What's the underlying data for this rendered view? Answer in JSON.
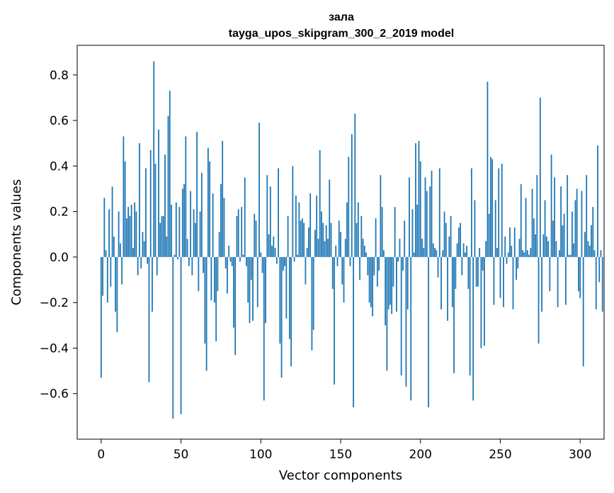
{
  "chart_data": {
    "type": "bar",
    "title": "зала",
    "subtitle": "tayga_upos_skipgram_300_2_2019 model",
    "xlabel": "Vector components",
    "ylabel": "Components values",
    "xlim": [
      -15,
      315
    ],
    "ylim": [
      -0.8,
      0.93
    ],
    "xticks": [
      0,
      50,
      100,
      150,
      200,
      250,
      300
    ],
    "yticks": [
      -0.6,
      -0.4,
      -0.2,
      0.0,
      0.2,
      0.4,
      0.6,
      0.8
    ],
    "xtick_labels": [
      "0",
      "50",
      "100",
      "150",
      "200",
      "250",
      "300"
    ],
    "ytick_labels": [
      "−0.6",
      "−0.4",
      "−0.2",
      "0.0",
      "0.2",
      "0.4",
      "0.6",
      "0.8"
    ],
    "bar_color": "#1f77b4",
    "grid": false,
    "values": [
      -0.53,
      -0.17,
      0.26,
      0.03,
      -0.2,
      0.21,
      -0.13,
      0.31,
      0.09,
      -0.24,
      -0.33,
      0.2,
      0.06,
      -0.12,
      0.53,
      0.42,
      0.17,
      0.22,
      0.18,
      0.23,
      0.04,
      0.24,
      0.2,
      -0.08,
      0.5,
      -0.05,
      0.11,
      0.07,
      0.39,
      -0.03,
      -0.55,
      0.47,
      -0.24,
      0.86,
      0.41,
      -0.08,
      0.56,
      0.15,
      0.18,
      0.18,
      0.45,
      0.09,
      0.62,
      0.73,
      0.23,
      -0.71,
      0.01,
      0.24,
      -0.01,
      0.22,
      -0.69,
      0.3,
      0.32,
      0.53,
      0.08,
      -0.04,
      0.29,
      -0.08,
      0.21,
      0.15,
      0.55,
      -0.15,
      0.2,
      0.37,
      -0.07,
      -0.38,
      -0.5,
      0.48,
      0.42,
      -0.19,
      0.28,
      -0.2,
      -0.37,
      -0.15,
      0.11,
      0.32,
      0.51,
      0.26,
      -0.05,
      -0.16,
      0.05,
      -0.02,
      -0.04,
      -0.31,
      -0.43,
      0.18,
      0.21,
      -0.02,
      0.22,
      0.01,
      0.35,
      -0.04,
      -0.2,
      -0.29,
      -0.1,
      -0.28,
      0.19,
      0.16,
      -0.22,
      0.59,
      0.02,
      -0.07,
      -0.63,
      -0.29,
      0.36,
      0.1,
      0.31,
      0.05,
      0.09,
      0.04,
      -0.03,
      0.39,
      -0.38,
      -0.53,
      -0.06,
      -0.04,
      -0.27,
      0.18,
      -0.36,
      -0.48,
      0.4,
      -0.02,
      0.27,
      0.01,
      0.24,
      0.16,
      0.17,
      0.15,
      -0.12,
      0.04,
      0.13,
      0.28,
      -0.41,
      -0.32,
      0.12,
      0.27,
      0.08,
      0.47,
      0.2,
      0.15,
      0.07,
      0.14,
      0.08,
      0.34,
      0.15,
      -0.14,
      -0.56,
      0.05,
      -0.04,
      0.16,
      0.11,
      -0.12,
      -0.2,
      0.08,
      0.24,
      0.44,
      -0.04,
      0.54,
      -0.66,
      0.63,
      0.15,
      0.24,
      -0.1,
      0.18,
      0.08,
      0.05,
      0.02,
      -0.08,
      -0.2,
      -0.22,
      -0.26,
      -0.08,
      0.17,
      -0.13,
      -0.06,
      0.36,
      0.22,
      0.03,
      -0.3,
      -0.5,
      -0.23,
      -0.21,
      -0.25,
      -0.13,
      0.22,
      -0.24,
      -0.02,
      0.08,
      -0.52,
      -0.06,
      0.16,
      -0.57,
      -0.23,
      0.35,
      -0.63,
      0.21,
      0.02,
      0.5,
      0.23,
      0.51,
      0.42,
      0.08,
      0.04,
      0.35,
      0.29,
      -0.66,
      0.31,
      0.38,
      0.06,
      0.04,
      0.03,
      -0.09,
      0.39,
      -0.23,
      0.03,
      0.2,
      0.15,
      -0.28,
      0.09,
      0.18,
      -0.22,
      -0.51,
      -0.14,
      0.06,
      0.13,
      0.15,
      -0.08,
      0.06,
      0.02,
      0.05,
      -0.14,
      -0.52,
      0.39,
      -0.63,
      0.25,
      -0.13,
      -0.13,
      0.04,
      -0.4,
      -0.06,
      -0.39,
      0.07,
      0.77,
      0.19,
      0.44,
      0.43,
      -0.21,
      0.25,
      0.04,
      0.39,
      -0.18,
      0.41,
      -0.22,
      0.09,
      -0.03,
      0.02,
      0.13,
      0.05,
      -0.23,
      0.13,
      -0.1,
      -0.05,
      0.08,
      0.32,
      0.03,
      0.02,
      0.26,
      0.03,
      0.01,
      0.04,
      0.3,
      0.17,
      0.1,
      0.36,
      -0.38,
      0.7,
      -0.24,
      0.1,
      0.25,
      0.09,
      0.07,
      -0.15,
      0.45,
      0.16,
      0.35,
      0.07,
      -0.22,
      0.03,
      0.31,
      0.14,
      0.19,
      -0.21,
      0.36,
      0.01,
      0.01,
      0.2,
      0.06,
      0.25,
      0.3,
      -0.15,
      -0.18,
      0.29,
      -0.48,
      0.11,
      0.36,
      0.07,
      0.05,
      0.14,
      0.22,
      0.03,
      -0.23,
      0.49,
      -0.11,
      0.03,
      -0.24
    ]
  }
}
